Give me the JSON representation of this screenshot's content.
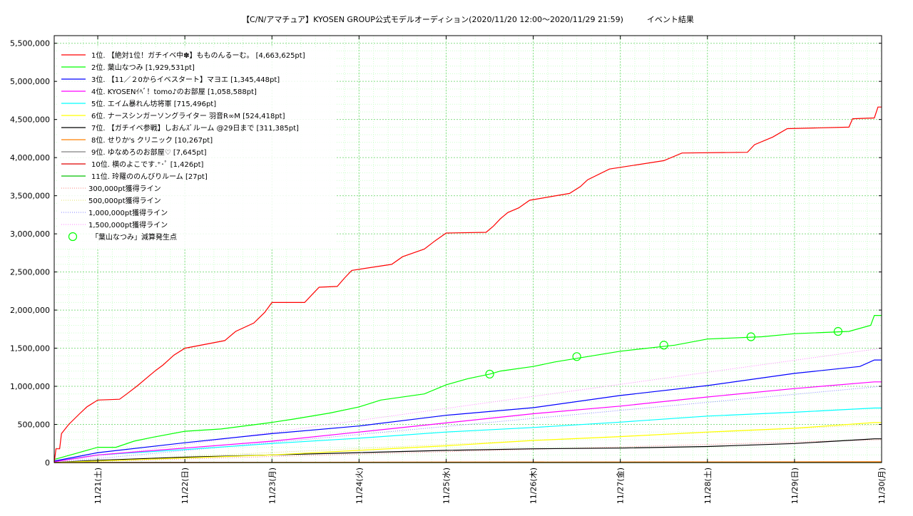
{
  "chart_data": {
    "type": "line",
    "title": "【C/N/アマチュア】KYOSEN GROUP公式モデルオーディション(2020/11/20 12:00〜2020/11/29 21:59)　　　イベント結果",
    "xlabel": "",
    "ylabel": "",
    "x_range": [
      "2020-11-20 12:00",
      "2020-11-30 00:00"
    ],
    "ylim": [
      0,
      5600000
    ],
    "grid": true,
    "legend_position": "top-left",
    "y_ticks": [
      "0",
      "500,000",
      "1,000,000",
      "1,500,000",
      "2,000,000",
      "2,500,000",
      "3,000,000",
      "3,500,000",
      "4,000,000",
      "4,500,000",
      "5,000,000",
      "5,500,000"
    ],
    "y_tick_values": [
      0,
      500000,
      1000000,
      1500000,
      2000000,
      2500000,
      3000000,
      3500000,
      4000000,
      4500000,
      5000000,
      5500000
    ],
    "x_ticks": [
      {
        "label": "11/21(土)",
        "date": "2020-11-21 00:00"
      },
      {
        "label": "11/22(日)",
        "date": "2020-11-22 00:00"
      },
      {
        "label": "11/23(月)",
        "date": "2020-11-23 00:00"
      },
      {
        "label": "11/24(火)",
        "date": "2020-11-24 00:00"
      },
      {
        "label": "11/25(水)",
        "date": "2020-11-25 00:00"
      },
      {
        "label": "11/26(木)",
        "date": "2020-11-26 00:00"
      },
      {
        "label": "11/27(金)",
        "date": "2020-11-27 00:00"
      },
      {
        "label": "11/28(土)",
        "date": "2020-11-28 00:00"
      },
      {
        "label": "11/29(日)",
        "date": "2020-11-29 00:00"
      },
      {
        "label": "11/30(月)",
        "date": "2020-11-30 00:00"
      }
    ],
    "series": [
      {
        "name": "1位. 【絶対1位！ガチイベ中✽】もものんるーむ。 [4,663,625pt]",
        "color": "#ff0000",
        "points": [
          [
            "2020-11-20 12:00",
            0
          ],
          [
            "2020-11-20 12:30",
            180000
          ],
          [
            "2020-11-20 13:30",
            180000
          ],
          [
            "2020-11-20 14:00",
            380000
          ],
          [
            "2020-11-20 16:00",
            500000
          ],
          [
            "2020-11-20 19:00",
            640000
          ],
          [
            "2020-11-20 21:00",
            730000
          ],
          [
            "2020-11-21 00:00",
            820000
          ],
          [
            "2020-11-21 06:00",
            830000
          ],
          [
            "2020-11-21 08:00",
            900000
          ],
          [
            "2020-11-21 11:00",
            1010000
          ],
          [
            "2020-11-21 14:00",
            1130000
          ],
          [
            "2020-11-21 16:00",
            1210000
          ],
          [
            "2020-11-21 18:00",
            1280000
          ],
          [
            "2020-11-21 21:00",
            1410000
          ],
          [
            "2020-11-22 00:00",
            1500000
          ],
          [
            "2020-11-22 11:00",
            1600000
          ],
          [
            "2020-11-22 14:00",
            1720000
          ],
          [
            "2020-11-22 19:00",
            1830000
          ],
          [
            "2020-11-22 22:00",
            1970000
          ],
          [
            "2020-11-23 00:00",
            2100000
          ],
          [
            "2020-11-23 09:00",
            2100000
          ],
          [
            "2020-11-23 11:00",
            2200000
          ],
          [
            "2020-11-23 13:00",
            2300000
          ],
          [
            "2020-11-23 18:00",
            2310000
          ],
          [
            "2020-11-23 20:00",
            2420000
          ],
          [
            "2020-11-23 22:00",
            2520000
          ],
          [
            "2020-11-24 09:00",
            2600000
          ],
          [
            "2020-11-24 12:00",
            2700000
          ],
          [
            "2020-11-24 18:00",
            2800000
          ],
          [
            "2020-11-24 21:00",
            2910000
          ],
          [
            "2020-11-25 00:00",
            3010000
          ],
          [
            "2020-11-25 11:00",
            3020000
          ],
          [
            "2020-11-25 13:00",
            3100000
          ],
          [
            "2020-11-25 15:00",
            3200000
          ],
          [
            "2020-11-25 17:00",
            3280000
          ],
          [
            "2020-11-25 20:00",
            3340000
          ],
          [
            "2020-11-25 23:00",
            3440000
          ],
          [
            "2020-11-26 10:00",
            3530000
          ],
          [
            "2020-11-26 13:00",
            3620000
          ],
          [
            "2020-11-26 15:00",
            3710000
          ],
          [
            "2020-11-26 21:00",
            3850000
          ],
          [
            "2020-11-27 12:00",
            3960000
          ],
          [
            "2020-11-27 17:00",
            4060000
          ],
          [
            "2020-11-28 11:00",
            4070000
          ],
          [
            "2020-11-28 13:00",
            4170000
          ],
          [
            "2020-11-28 18:00",
            4270000
          ],
          [
            "2020-11-28 22:00",
            4380000
          ],
          [
            "2020-11-29 15:00",
            4400000
          ],
          [
            "2020-11-29 16:00",
            4510000
          ],
          [
            "2020-11-29 22:00",
            4520000
          ],
          [
            "2020-11-29 23:00",
            4663625
          ],
          [
            "2020-11-30 00:00",
            4663625
          ]
        ]
      },
      {
        "name": "2位. 葉山なつみ [1,929,531pt]",
        "color": "#00ff00",
        "points": [
          [
            "2020-11-20 12:00",
            40000
          ],
          [
            "2020-11-20 18:00",
            120000
          ],
          [
            "2020-11-21 00:00",
            200000
          ],
          [
            "2020-11-21 05:00",
            200000
          ],
          [
            "2020-11-21 10:00",
            280000
          ],
          [
            "2020-11-21 15:00",
            330000
          ],
          [
            "2020-11-22 00:00",
            410000
          ],
          [
            "2020-11-22 10:00",
            440000
          ],
          [
            "2020-11-22 23:00",
            520000
          ],
          [
            "2020-11-23 06:00",
            570000
          ],
          [
            "2020-11-23 16:00",
            650000
          ],
          [
            "2020-11-24 00:00",
            730000
          ],
          [
            "2020-11-24 06:00",
            820000
          ],
          [
            "2020-11-24 18:00",
            900000
          ],
          [
            "2020-11-25 00:00",
            1020000
          ],
          [
            "2020-11-25 06:00",
            1100000
          ],
          [
            "2020-11-25 12:00",
            1160000
          ],
          [
            "2020-11-25 15:00",
            1200000
          ],
          [
            "2020-11-26 00:00",
            1260000
          ],
          [
            "2020-11-26 06:00",
            1320000
          ],
          [
            "2020-11-26 15:00",
            1390000
          ],
          [
            "2020-11-27 00:00",
            1460000
          ],
          [
            "2020-11-27 15:00",
            1540000
          ],
          [
            "2020-11-28 00:00",
            1620000
          ],
          [
            "2020-11-28 15:00",
            1650000
          ],
          [
            "2020-11-29 00:00",
            1690000
          ],
          [
            "2020-11-29 15:00",
            1720000
          ],
          [
            "2020-11-29 21:00",
            1800000
          ],
          [
            "2020-11-29 22:00",
            1929531
          ],
          [
            "2020-11-30 00:00",
            1929531
          ]
        ]
      },
      {
        "name": "3位. 【11／２0からイベスタート】マヨエ [1,345,448pt]",
        "color": "#0000ff",
        "points": [
          [
            "2020-11-20 12:00",
            20000
          ],
          [
            "2020-11-21 00:00",
            130000
          ],
          [
            "2020-11-22 00:00",
            260000
          ],
          [
            "2020-11-23 00:00",
            380000
          ],
          [
            "2020-11-24 00:00",
            480000
          ],
          [
            "2020-11-25 00:00",
            620000
          ],
          [
            "2020-11-26 00:00",
            720000
          ],
          [
            "2020-11-27 00:00",
            880000
          ],
          [
            "2020-11-28 00:00",
            1010000
          ],
          [
            "2020-11-29 00:00",
            1170000
          ],
          [
            "2020-11-29 18:00",
            1260000
          ],
          [
            "2020-11-29 22:00",
            1345448
          ],
          [
            "2020-11-30 00:00",
            1345448
          ]
        ]
      },
      {
        "name": "4位. KYOSENｲﾍﾞ！tomo♪のお部屋 [1,058,588pt]",
        "color": "#ff00ff",
        "points": [
          [
            "2020-11-20 12:00",
            10000
          ],
          [
            "2020-11-21 00:00",
            100000
          ],
          [
            "2020-11-22 00:00",
            190000
          ],
          [
            "2020-11-23 00:00",
            280000
          ],
          [
            "2020-11-24 00:00",
            400000
          ],
          [
            "2020-11-25 00:00",
            520000
          ],
          [
            "2020-11-26 00:00",
            640000
          ],
          [
            "2020-11-27 00:00",
            740000
          ],
          [
            "2020-11-28 00:00",
            860000
          ],
          [
            "2020-11-29 00:00",
            970000
          ],
          [
            "2020-11-29 22:00",
            1058588
          ],
          [
            "2020-11-30 00:00",
            1058588
          ]
        ]
      },
      {
        "name": "5位. エイム暴れん坊将軍 [715,496pt]",
        "color": "#00ffff",
        "points": [
          [
            "2020-11-20 12:00",
            15000
          ],
          [
            "2020-11-21 00:00",
            100000
          ],
          [
            "2020-11-22 00:00",
            170000
          ],
          [
            "2020-11-23 00:00",
            250000
          ],
          [
            "2020-11-24 00:00",
            320000
          ],
          [
            "2020-11-25 00:00",
            400000
          ],
          [
            "2020-11-26 00:00",
            460000
          ],
          [
            "2020-11-27 00:00",
            530000
          ],
          [
            "2020-11-28 00:00",
            610000
          ],
          [
            "2020-11-29 00:00",
            660000
          ],
          [
            "2020-11-29 22:00",
            715496
          ],
          [
            "2020-11-30 00:00",
            715496
          ]
        ]
      },
      {
        "name": "6位. ナースシンガーソングライター 羽音R∞M [524,418pt]",
        "color": "#ffff00",
        "points": [
          [
            "2020-11-20 12:00",
            0
          ],
          [
            "2020-11-21 00:00",
            20000
          ],
          [
            "2020-11-22 00:00",
            60000
          ],
          [
            "2020-11-23 00:00",
            100000
          ],
          [
            "2020-11-24 00:00",
            160000
          ],
          [
            "2020-11-25 00:00",
            220000
          ],
          [
            "2020-11-26 00:00",
            290000
          ],
          [
            "2020-11-27 00:00",
            340000
          ],
          [
            "2020-11-28 00:00",
            400000
          ],
          [
            "2020-11-29 00:00",
            450000
          ],
          [
            "2020-11-29 22:00",
            524418
          ],
          [
            "2020-11-30 00:00",
            524418
          ]
        ]
      },
      {
        "name": "7位. 【ガチイベ参戦】しおんｽﾞルーム @29日まで [311,385pt]",
        "color": "#000000",
        "points": [
          [
            "2020-11-20 12:00",
            0
          ],
          [
            "2020-11-21 00:00",
            30000
          ],
          [
            "2020-11-22 00:00",
            70000
          ],
          [
            "2020-11-23 00:00",
            100000
          ],
          [
            "2020-11-24 00:00",
            130000
          ],
          [
            "2020-11-25 00:00",
            160000
          ],
          [
            "2020-11-26 00:00",
            180000
          ],
          [
            "2020-11-27 00:00",
            190000
          ],
          [
            "2020-11-28 00:00",
            210000
          ],
          [
            "2020-11-29 00:00",
            250000
          ],
          [
            "2020-11-29 20:00",
            305000
          ],
          [
            "2020-11-29 22:00",
            311385
          ],
          [
            "2020-11-30 00:00",
            311385
          ]
        ]
      },
      {
        "name": "8位. せりか's クリニック [10,267pt]",
        "color": "#ff8000",
        "points": [
          [
            "2020-11-20 12:00",
            0
          ],
          [
            "2020-11-25 00:00",
            6000
          ],
          [
            "2020-11-30 00:00",
            10267
          ]
        ]
      },
      {
        "name": "9位. ゆなめろのお部屋♡ [7,645pt]",
        "color": "#808080",
        "points": [
          [
            "2020-11-20 12:00",
            0
          ],
          [
            "2020-11-25 00:00",
            5000
          ],
          [
            "2020-11-30 00:00",
            7645
          ]
        ]
      },
      {
        "name": "10位. 横のよこです.⁺･ﾟ [1,426pt]",
        "color": "#e00000",
        "points": [
          [
            "2020-11-20 12:00",
            0
          ],
          [
            "2020-11-30 00:00",
            1426
          ]
        ]
      },
      {
        "name": "11位. 玲羅ののんびりルーム [27pt]",
        "color": "#00c000",
        "points": [
          [
            "2020-11-20 12:00",
            0
          ],
          [
            "2020-11-30 00:00",
            27
          ]
        ]
      }
    ],
    "reference_lines": [
      {
        "name": "300,000pt獲得ライン",
        "color": "#ff8080",
        "points": [
          [
            "2020-11-20 12:00",
            0
          ],
          [
            "2020-11-30 00:00",
            300000
          ]
        ]
      },
      {
        "name": "500,000pt獲得ライン",
        "color": "#e0e060",
        "points": [
          [
            "2020-11-20 12:00",
            0
          ],
          [
            "2020-11-30 00:00",
            500000
          ]
        ]
      },
      {
        "name": "1,000,000pt獲得ライン",
        "color": "#8080ff",
        "points": [
          [
            "2020-11-20 12:00",
            0
          ],
          [
            "2020-11-30 00:00",
            1000000
          ]
        ]
      },
      {
        "name": "1,500,000pt獲得ライン",
        "color": "#ff80ff",
        "points": [
          [
            "2020-11-20 12:00",
            0
          ],
          [
            "2020-11-30 00:00",
            1500000
          ]
        ]
      }
    ],
    "markers": {
      "name": "「葉山なつみ」減算発生点",
      "color": "#00ff00",
      "points": [
        [
          "2020-11-25 12:00",
          1160000
        ],
        [
          "2020-11-26 12:00",
          1390000
        ],
        [
          "2020-11-27 12:00",
          1540000
        ],
        [
          "2020-11-28 12:00",
          1650000
        ],
        [
          "2020-11-29 12:00",
          1720000
        ]
      ]
    }
  }
}
